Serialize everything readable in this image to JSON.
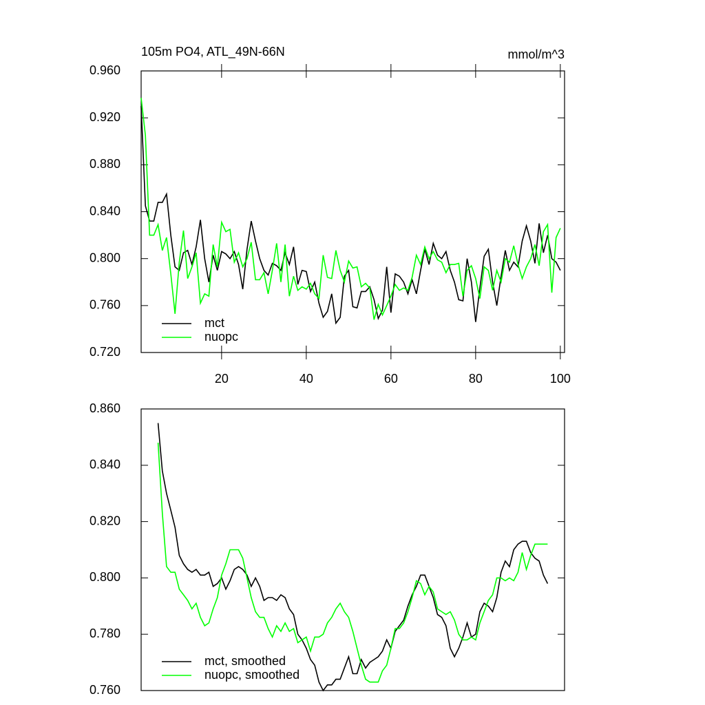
{
  "chart_data": [
    {
      "type": "line",
      "title": "105m PO4, ATL_49N-66N",
      "units": "mmol/m^3",
      "x": [
        1,
        2,
        3,
        4,
        5,
        6,
        7,
        8,
        9,
        10,
        11,
        12,
        13,
        14,
        15,
        16,
        17,
        18,
        19,
        20,
        21,
        22,
        23,
        24,
        25,
        26,
        27,
        28,
        29,
        30,
        31,
        32,
        33,
        34,
        35,
        36,
        37,
        38,
        39,
        40,
        41,
        42,
        43,
        44,
        45,
        46,
        47,
        48,
        49,
        50,
        51,
        52,
        53,
        54,
        55,
        56,
        57,
        58,
        59,
        60,
        61,
        62,
        63,
        64,
        65,
        66,
        67,
        68,
        69,
        70,
        71,
        72,
        73,
        74,
        75,
        76,
        77,
        78,
        79,
        80,
        81,
        82,
        83,
        84,
        85,
        86,
        87,
        88,
        89,
        90,
        91,
        92,
        93,
        94,
        95,
        96,
        97,
        98,
        99,
        100
      ],
      "series": [
        {
          "name": "mct",
          "color": "#000000",
          "values": [
            0.93,
            0.845,
            0.832,
            0.832,
            0.848,
            0.848,
            0.855,
            0.82,
            0.793,
            0.79,
            0.805,
            0.807,
            0.795,
            0.81,
            0.833,
            0.8,
            0.78,
            0.803,
            0.79,
            0.806,
            0.804,
            0.8,
            0.806,
            0.795,
            0.774,
            0.808,
            0.832,
            0.815,
            0.8,
            0.79,
            0.786,
            0.796,
            0.794,
            0.79,
            0.805,
            0.795,
            0.81,
            0.778,
            0.79,
            0.789,
            0.772,
            0.78,
            0.762,
            0.75,
            0.755,
            0.77,
            0.745,
            0.75,
            0.785,
            0.79,
            0.759,
            0.758,
            0.772,
            0.772,
            0.776,
            0.765,
            0.749,
            0.756,
            0.793,
            0.754,
            0.787,
            0.785,
            0.78,
            0.77,
            0.782,
            0.77,
            0.79,
            0.808,
            0.795,
            0.813,
            0.803,
            0.8,
            0.806,
            0.79,
            0.78,
            0.765,
            0.764,
            0.8,
            0.78,
            0.746,
            0.775,
            0.802,
            0.808,
            0.78,
            0.76,
            0.785,
            0.807,
            0.79,
            0.797,
            0.793,
            0.815,
            0.828,
            0.815,
            0.796,
            0.83,
            0.805,
            0.82,
            0.8,
            0.797,
            0.79
          ]
        },
        {
          "name": "nuopc",
          "color": "#00ff00",
          "values": [
            0.937,
            0.905,
            0.82,
            0.82,
            0.829,
            0.807,
            0.818,
            0.787,
            0.753,
            0.797,
            0.824,
            0.783,
            0.793,
            0.805,
            0.762,
            0.77,
            0.768,
            0.812,
            0.793,
            0.831,
            0.823,
            0.825,
            0.797,
            0.805,
            0.793,
            0.8,
            0.814,
            0.782,
            0.782,
            0.788,
            0.77,
            0.79,
            0.813,
            0.78,
            0.812,
            0.768,
            0.785,
            0.773,
            0.776,
            0.774,
            0.779,
            0.77,
            0.766,
            0.803,
            0.784,
            0.783,
            0.807,
            0.79,
            0.78,
            0.798,
            0.792,
            0.793,
            0.776,
            0.779,
            0.775,
            0.748,
            0.761,
            0.752,
            0.76,
            0.768,
            0.778,
            0.773,
            0.775,
            0.773,
            0.784,
            0.803,
            0.795,
            0.81,
            0.8,
            0.806,
            0.799,
            0.797,
            0.788,
            0.795,
            0.795,
            0.796,
            0.768,
            0.79,
            0.794,
            0.783,
            0.766,
            0.793,
            0.79,
            0.773,
            0.79,
            0.78,
            0.8,
            0.797,
            0.811,
            0.795,
            0.783,
            0.793,
            0.8,
            0.812,
            0.794,
            0.823,
            0.829,
            0.771,
            0.818,
            0.826
          ]
        }
      ],
      "xlim": [
        1,
        101
      ],
      "xticks": [
        20,
        40,
        60,
        80,
        100
      ],
      "ylim": [
        0.72,
        0.96
      ],
      "yticks": [
        {
          "value": 0.72,
          "label": "0.720"
        },
        {
          "value": 0.76,
          "label": "0.760"
        },
        {
          "value": 0.8,
          "label": "0.800"
        },
        {
          "value": 0.84,
          "label": "0.840"
        },
        {
          "value": 0.88,
          "label": "0.880"
        },
        {
          "value": 0.92,
          "label": "0.920"
        },
        {
          "value": 0.96,
          "label": "0.960"
        }
      ],
      "legend": "lower left"
    },
    {
      "type": "line",
      "x": [
        5,
        6,
        7,
        8,
        9,
        10,
        11,
        12,
        13,
        14,
        15,
        16,
        17,
        18,
        19,
        20,
        21,
        22,
        23,
        24,
        25,
        26,
        27,
        28,
        29,
        30,
        31,
        32,
        33,
        34,
        35,
        36,
        37,
        38,
        39,
        40,
        41,
        42,
        43,
        44,
        45,
        46,
        47,
        48,
        49,
        50,
        51,
        52,
        53,
        54,
        55,
        56,
        57,
        58,
        59,
        60,
        61,
        62,
        63,
        64,
        65,
        66,
        67,
        68,
        69,
        70,
        71,
        72,
        73,
        74,
        75,
        76,
        77,
        78,
        79,
        80,
        81,
        82,
        83,
        84,
        85,
        86,
        87,
        88,
        89,
        90,
        91,
        92,
        93,
        94,
        95,
        96,
        97
      ],
      "series": [
        {
          "name": "mct, smoothed",
          "color": "#000000",
          "values": [
            0.855,
            0.838,
            0.83,
            0.824,
            0.818,
            0.808,
            0.805,
            0.803,
            0.802,
            0.803,
            0.801,
            0.801,
            0.802,
            0.797,
            0.798,
            0.8,
            0.796,
            0.799,
            0.803,
            0.804,
            0.803,
            0.801,
            0.797,
            0.8,
            0.797,
            0.792,
            0.793,
            0.793,
            0.792,
            0.794,
            0.793,
            0.789,
            0.787,
            0.78,
            0.778,
            0.775,
            0.771,
            0.769,
            0.763,
            0.76,
            0.762,
            0.762,
            0.764,
            0.764,
            0.768,
            0.772,
            0.766,
            0.766,
            0.771,
            0.768,
            0.77,
            0.771,
            0.772,
            0.774,
            0.778,
            0.775,
            0.781,
            0.783,
            0.785,
            0.79,
            0.794,
            0.797,
            0.801,
            0.801,
            0.797,
            0.793,
            0.787,
            0.786,
            0.783,
            0.775,
            0.772,
            0.775,
            0.779,
            0.784,
            0.779,
            0.78,
            0.788,
            0.791,
            0.79,
            0.788,
            0.793,
            0.802,
            0.806,
            0.804,
            0.81,
            0.812,
            0.813,
            0.813,
            0.809,
            0.807,
            0.806,
            0.801,
            0.798
          ]
        },
        {
          "name": "nuopc, smoothed",
          "color": "#00ff00",
          "values": [
            0.848,
            0.823,
            0.804,
            0.802,
            0.802,
            0.796,
            0.794,
            0.792,
            0.789,
            0.791,
            0.786,
            0.783,
            0.784,
            0.789,
            0.793,
            0.801,
            0.805,
            0.81,
            0.81,
            0.81,
            0.807,
            0.8,
            0.793,
            0.788,
            0.786,
            0.786,
            0.782,
            0.779,
            0.783,
            0.781,
            0.784,
            0.781,
            0.782,
            0.777,
            0.778,
            0.779,
            0.774,
            0.779,
            0.779,
            0.78,
            0.784,
            0.786,
            0.789,
            0.791,
            0.788,
            0.786,
            0.781,
            0.775,
            0.769,
            0.764,
            0.763,
            0.763,
            0.763,
            0.767,
            0.769,
            0.775,
            0.782,
            0.782,
            0.784,
            0.788,
            0.793,
            0.799,
            0.798,
            0.794,
            0.797,
            0.795,
            0.789,
            0.788,
            0.787,
            0.788,
            0.785,
            0.78,
            0.778,
            0.778,
            0.779,
            0.778,
            0.784,
            0.788,
            0.792,
            0.794,
            0.8,
            0.8,
            0.799,
            0.8,
            0.799,
            0.802,
            0.809,
            0.803,
            0.808,
            0.812,
            0.812,
            0.812,
            0.812
          ]
        }
      ],
      "xlim": [
        1,
        101
      ],
      "ylim": [
        0.76,
        0.86
      ],
      "yticks": [
        {
          "value": 0.76,
          "label": "0.760"
        },
        {
          "value": 0.78,
          "label": "0.780"
        },
        {
          "value": 0.8,
          "label": "0.800"
        },
        {
          "value": 0.82,
          "label": "0.820"
        },
        {
          "value": 0.84,
          "label": "0.840"
        },
        {
          "value": 0.86,
          "label": "0.860"
        }
      ],
      "legend": "lower left"
    }
  ]
}
